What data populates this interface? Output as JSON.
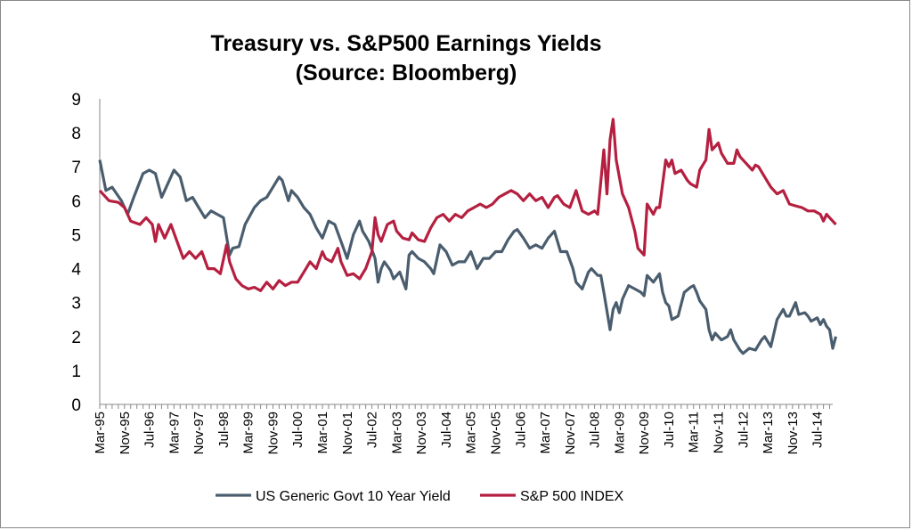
{
  "chart_data": {
    "type": "line",
    "title": "Treasury vs. S&P500 Earnings Yields",
    "subtitle": "(Source: Bloomberg)",
    "xlabel": "",
    "ylabel": "",
    "ylim": [
      0,
      9
    ],
    "yticks": [
      "0",
      "1",
      "2",
      "3",
      "4",
      "5",
      "6",
      "7",
      "8",
      "9"
    ],
    "x_start": "Mar-95",
    "x_end": "Dec-14",
    "xtick_labels": [
      "Mar-95",
      "Nov-95",
      "Jul-96",
      "Mar-97",
      "Nov-97",
      "Jul-98",
      "Mar-99",
      "Nov-99",
      "Jul-00",
      "Mar-01",
      "Nov-01",
      "Jul-02",
      "Mar-03",
      "Nov-03",
      "Jul-04",
      "Mar-05",
      "Nov-05",
      "Jul-06",
      "Mar-07",
      "Nov-07",
      "Jul-08",
      "Mar-09",
      "Nov-09",
      "Jul-10",
      "Mar-11",
      "Nov-11",
      "Jul-12",
      "Mar-13",
      "Nov-13",
      "Jul-14"
    ],
    "grid": false,
    "legend": "bottom",
    "series": [
      {
        "name": "US Generic Govt 10 Year Yield",
        "color": "#4a5d6e",
        "points": [
          [
            "Mar-95",
            7.2
          ],
          [
            "May-95",
            6.3
          ],
          [
            "Jul-95",
            6.4
          ],
          [
            "Oct-95",
            6.0
          ],
          [
            "Dec-95",
            5.6
          ],
          [
            "Feb-96",
            6.1
          ],
          [
            "May-96",
            6.8
          ],
          [
            "Jul-96",
            6.9
          ],
          [
            "Sep-96",
            6.8
          ],
          [
            "Nov-96",
            6.1
          ],
          [
            "Jan-97",
            6.5
          ],
          [
            "Mar-97",
            6.9
          ],
          [
            "May-97",
            6.7
          ],
          [
            "Jul-97",
            6.0
          ],
          [
            "Sep-97",
            6.1
          ],
          [
            "Nov-97",
            5.8
          ],
          [
            "Jan-98",
            5.5
          ],
          [
            "Mar-98",
            5.7
          ],
          [
            "May-98",
            5.6
          ],
          [
            "Jul-98",
            5.5
          ],
          [
            "Sep-98",
            4.4
          ],
          [
            "Oct-98",
            4.6
          ],
          [
            "Dec-98",
            4.65
          ],
          [
            "Feb-99",
            5.3
          ],
          [
            "May-99",
            5.8
          ],
          [
            "Jul-99",
            6.0
          ],
          [
            "Sep-99",
            6.1
          ],
          [
            "Nov-99",
            6.4
          ],
          [
            "Jan-00",
            6.7
          ],
          [
            "Feb-00",
            6.6
          ],
          [
            "Apr-00",
            6.0
          ],
          [
            "May-00",
            6.3
          ],
          [
            "Jul-00",
            6.1
          ],
          [
            "Sep-00",
            5.8
          ],
          [
            "Nov-00",
            5.6
          ],
          [
            "Jan-01",
            5.2
          ],
          [
            "Mar-01",
            4.9
          ],
          [
            "May-01",
            5.4
          ],
          [
            "Jul-01",
            5.3
          ],
          [
            "Sep-01",
            4.8
          ],
          [
            "Nov-01",
            4.3
          ],
          [
            "Jan-02",
            5.0
          ],
          [
            "Mar-02",
            5.4
          ],
          [
            "Apr-02",
            5.1
          ],
          [
            "Jun-02",
            4.8
          ],
          [
            "Aug-02",
            4.3
          ],
          [
            "Sep-02",
            3.6
          ],
          [
            "Oct-02",
            4.0
          ],
          [
            "Nov-02",
            4.2
          ],
          [
            "Jan-03",
            3.95
          ],
          [
            "Feb-03",
            3.7
          ],
          [
            "Apr-03",
            3.9
          ],
          [
            "Jun-03",
            3.4
          ],
          [
            "Jul-03",
            4.4
          ],
          [
            "Aug-03",
            4.5
          ],
          [
            "Oct-03",
            4.3
          ],
          [
            "Dec-03",
            4.2
          ],
          [
            "Feb-04",
            4.0
          ],
          [
            "Mar-04",
            3.85
          ],
          [
            "May-04",
            4.7
          ],
          [
            "Jul-04",
            4.5
          ],
          [
            "Sep-04",
            4.1
          ],
          [
            "Nov-04",
            4.2
          ],
          [
            "Jan-05",
            4.2
          ],
          [
            "Mar-05",
            4.5
          ],
          [
            "May-05",
            4.0
          ],
          [
            "Jul-05",
            4.3
          ],
          [
            "Sep-05",
            4.3
          ],
          [
            "Nov-05",
            4.5
          ],
          [
            "Jan-06",
            4.5
          ],
          [
            "Mar-06",
            4.85
          ],
          [
            "May-06",
            5.1
          ],
          [
            "Jun-06",
            5.15
          ],
          [
            "Aug-06",
            4.9
          ],
          [
            "Oct-06",
            4.6
          ],
          [
            "Dec-06",
            4.7
          ],
          [
            "Feb-07",
            4.6
          ],
          [
            "Apr-07",
            4.9
          ],
          [
            "Jun-07",
            5.1
          ],
          [
            "Aug-07",
            4.5
          ],
          [
            "Oct-07",
            4.5
          ],
          [
            "Dec-07",
            4.0
          ],
          [
            "Jan-08",
            3.6
          ],
          [
            "Mar-08",
            3.4
          ],
          [
            "May-08",
            3.9
          ],
          [
            "Jun-08",
            4.0
          ],
          [
            "Aug-08",
            3.8
          ],
          [
            "Sep-08",
            3.8
          ],
          [
            "Oct-08",
            3.3
          ],
          [
            "Dec-08",
            2.2
          ],
          [
            "Jan-09",
            2.8
          ],
          [
            "Feb-09",
            3.0
          ],
          [
            "Mar-09",
            2.7
          ],
          [
            "Apr-09",
            3.1
          ],
          [
            "Jun-09",
            3.5
          ],
          [
            "Aug-09",
            3.4
          ],
          [
            "Oct-09",
            3.3
          ],
          [
            "Nov-09",
            3.2
          ],
          [
            "Dec-09",
            3.8
          ],
          [
            "Feb-10",
            3.6
          ],
          [
            "Apr-10",
            3.85
          ],
          [
            "May-10",
            3.3
          ],
          [
            "Jun-10",
            3.0
          ],
          [
            "Jul-10",
            2.9
          ],
          [
            "Aug-10",
            2.5
          ],
          [
            "Oct-10",
            2.6
          ],
          [
            "Dec-10",
            3.3
          ],
          [
            "Feb-11",
            3.45
          ],
          [
            "Mar-11",
            3.5
          ],
          [
            "Apr-11",
            3.3
          ],
          [
            "May-11",
            3.05
          ],
          [
            "Jul-11",
            2.8
          ],
          [
            "Aug-11",
            2.2
          ],
          [
            "Sep-11",
            1.9
          ],
          [
            "Oct-11",
            2.1
          ],
          [
            "Dec-11",
            1.9
          ],
          [
            "Feb-12",
            2.0
          ],
          [
            "Mar-12",
            2.2
          ],
          [
            "Apr-12",
            1.9
          ],
          [
            "Jun-12",
            1.6
          ],
          [
            "Jul-12",
            1.5
          ],
          [
            "Sep-12",
            1.65
          ],
          [
            "Nov-12",
            1.6
          ],
          [
            "Jan-13",
            1.9
          ],
          [
            "Feb-13",
            2.0
          ],
          [
            "Apr-13",
            1.7
          ],
          [
            "Jun-13",
            2.5
          ],
          [
            "Aug-13",
            2.8
          ],
          [
            "Sep-13",
            2.6
          ],
          [
            "Oct-13",
            2.6
          ],
          [
            "Dec-13",
            3.0
          ],
          [
            "Jan-14",
            2.65
          ],
          [
            "Mar-14",
            2.7
          ],
          [
            "Apr-14",
            2.6
          ],
          [
            "May-14",
            2.45
          ],
          [
            "Jul-14",
            2.55
          ],
          [
            "Aug-14",
            2.35
          ],
          [
            "Sep-14",
            2.5
          ],
          [
            "Oct-14",
            2.3
          ],
          [
            "Nov-14",
            2.2
          ],
          [
            "Dec-14",
            1.65
          ],
          [
            "Jan-15",
            2.0
          ]
        ]
      },
      {
        "name": "S&P 500 INDEX",
        "color": "#b51f40",
        "points": [
          [
            "Mar-95",
            6.3
          ],
          [
            "Jun-95",
            6.0
          ],
          [
            "Sep-95",
            5.95
          ],
          [
            "Nov-95",
            5.8
          ],
          [
            "Jan-96",
            5.4
          ],
          [
            "Apr-96",
            5.3
          ],
          [
            "Jun-96",
            5.5
          ],
          [
            "Aug-96",
            5.3
          ],
          [
            "Sep-96",
            4.8
          ],
          [
            "Oct-96",
            5.3
          ],
          [
            "Dec-96",
            4.9
          ],
          [
            "Feb-97",
            5.3
          ],
          [
            "Apr-97",
            4.8
          ],
          [
            "Jun-97",
            4.3
          ],
          [
            "Aug-97",
            4.5
          ],
          [
            "Oct-97",
            4.3
          ],
          [
            "Dec-97",
            4.5
          ],
          [
            "Feb-98",
            4.0
          ],
          [
            "Apr-98",
            4.0
          ],
          [
            "Jun-98",
            3.85
          ],
          [
            "Aug-98",
            4.7
          ],
          [
            "Sep-98",
            4.2
          ],
          [
            "Nov-98",
            3.7
          ],
          [
            "Jan-99",
            3.5
          ],
          [
            "Mar-99",
            3.4
          ],
          [
            "May-99",
            3.45
          ],
          [
            "Jul-99",
            3.35
          ],
          [
            "Sep-99",
            3.6
          ],
          [
            "Nov-99",
            3.4
          ],
          [
            "Jan-00",
            3.65
          ],
          [
            "Mar-00",
            3.5
          ],
          [
            "May-00",
            3.6
          ],
          [
            "Jul-00",
            3.6
          ],
          [
            "Sep-00",
            3.9
          ],
          [
            "Nov-00",
            4.2
          ],
          [
            "Jan-01",
            4.0
          ],
          [
            "Mar-01",
            4.5
          ],
          [
            "Apr-01",
            4.3
          ],
          [
            "Jun-01",
            4.2
          ],
          [
            "Aug-01",
            4.6
          ],
          [
            "Sep-01",
            4.2
          ],
          [
            "Nov-01",
            3.8
          ],
          [
            "Jan-02",
            3.85
          ],
          [
            "Mar-02",
            3.7
          ],
          [
            "May-02",
            4.0
          ],
          [
            "Jul-02",
            4.5
          ],
          [
            "Aug-02",
            5.5
          ],
          [
            "Sep-02",
            5.0
          ],
          [
            "Oct-02",
            4.8
          ],
          [
            "Dec-02",
            5.3
          ],
          [
            "Feb-03",
            5.4
          ],
          [
            "Mar-03",
            5.1
          ],
          [
            "May-03",
            4.9
          ],
          [
            "Jul-03",
            4.85
          ],
          [
            "Aug-03",
            5.05
          ],
          [
            "Oct-03",
            4.85
          ],
          [
            "Dec-03",
            4.8
          ],
          [
            "Feb-04",
            5.2
          ],
          [
            "Apr-04",
            5.5
          ],
          [
            "Jun-04",
            5.6
          ],
          [
            "Aug-04",
            5.4
          ],
          [
            "Oct-04",
            5.6
          ],
          [
            "Dec-04",
            5.5
          ],
          [
            "Feb-05",
            5.7
          ],
          [
            "Apr-05",
            5.8
          ],
          [
            "Jun-05",
            5.9
          ],
          [
            "Aug-05",
            5.8
          ],
          [
            "Oct-05",
            5.9
          ],
          [
            "Dec-05",
            6.1
          ],
          [
            "Feb-06",
            6.2
          ],
          [
            "Apr-06",
            6.3
          ],
          [
            "Jun-06",
            6.2
          ],
          [
            "Aug-06",
            6.0
          ],
          [
            "Oct-06",
            6.2
          ],
          [
            "Dec-06",
            6.0
          ],
          [
            "Feb-07",
            6.1
          ],
          [
            "Apr-07",
            5.8
          ],
          [
            "Jun-07",
            6.1
          ],
          [
            "Jul-07",
            6.15
          ],
          [
            "Sep-07",
            5.9
          ],
          [
            "Nov-07",
            5.8
          ],
          [
            "Jan-08",
            6.3
          ],
          [
            "Mar-08",
            5.7
          ],
          [
            "May-08",
            5.6
          ],
          [
            "Jul-08",
            5.7
          ],
          [
            "Aug-08",
            5.6
          ],
          [
            "Oct-08",
            7.5
          ],
          [
            "Nov-08",
            6.2
          ],
          [
            "Dec-08",
            7.8
          ],
          [
            "Jan-09",
            8.4
          ],
          [
            "Feb-09",
            7.2
          ],
          [
            "Mar-09",
            6.7
          ],
          [
            "Apr-09",
            6.2
          ],
          [
            "Jun-09",
            5.8
          ],
          [
            "Aug-09",
            5.1
          ],
          [
            "Sep-09",
            4.6
          ],
          [
            "Oct-09",
            4.5
          ],
          [
            "Nov-09",
            4.4
          ],
          [
            "Dec-09",
            5.9
          ],
          [
            "Feb-10",
            5.6
          ],
          [
            "Mar-10",
            5.8
          ],
          [
            "Apr-10",
            5.8
          ],
          [
            "Jun-10",
            7.2
          ],
          [
            "Jul-10",
            7.0
          ],
          [
            "Aug-10",
            7.2
          ],
          [
            "Sep-10",
            6.8
          ],
          [
            "Nov-10",
            6.9
          ],
          [
            "Jan-11",
            6.6
          ],
          [
            "Feb-11",
            6.5
          ],
          [
            "Apr-11",
            6.4
          ],
          [
            "May-11",
            6.9
          ],
          [
            "Jul-11",
            7.2
          ],
          [
            "Aug-11",
            8.1
          ],
          [
            "Sep-11",
            7.5
          ],
          [
            "Oct-11",
            7.6
          ],
          [
            "Nov-11",
            7.7
          ],
          [
            "Dec-11",
            7.4
          ],
          [
            "Feb-12",
            7.1
          ],
          [
            "Apr-12",
            7.1
          ],
          [
            "May-12",
            7.5
          ],
          [
            "Jun-12",
            7.3
          ],
          [
            "Aug-12",
            7.1
          ],
          [
            "Oct-12",
            6.9
          ],
          [
            "Nov-12",
            7.05
          ],
          [
            "Dec-12",
            7.0
          ],
          [
            "Feb-13",
            6.7
          ],
          [
            "Apr-13",
            6.4
          ],
          [
            "Jun-13",
            6.2
          ],
          [
            "Aug-13",
            6.3
          ],
          [
            "Oct-13",
            5.9
          ],
          [
            "Dec-13",
            5.85
          ],
          [
            "Feb-14",
            5.8
          ],
          [
            "Apr-14",
            5.7
          ],
          [
            "Jun-14",
            5.7
          ],
          [
            "Aug-14",
            5.6
          ],
          [
            "Sep-14",
            5.4
          ],
          [
            "Oct-14",
            5.6
          ],
          [
            "Nov-14",
            5.5
          ],
          [
            "Dec-14",
            5.4
          ],
          [
            "Jan-15",
            5.3
          ]
        ]
      }
    ]
  }
}
